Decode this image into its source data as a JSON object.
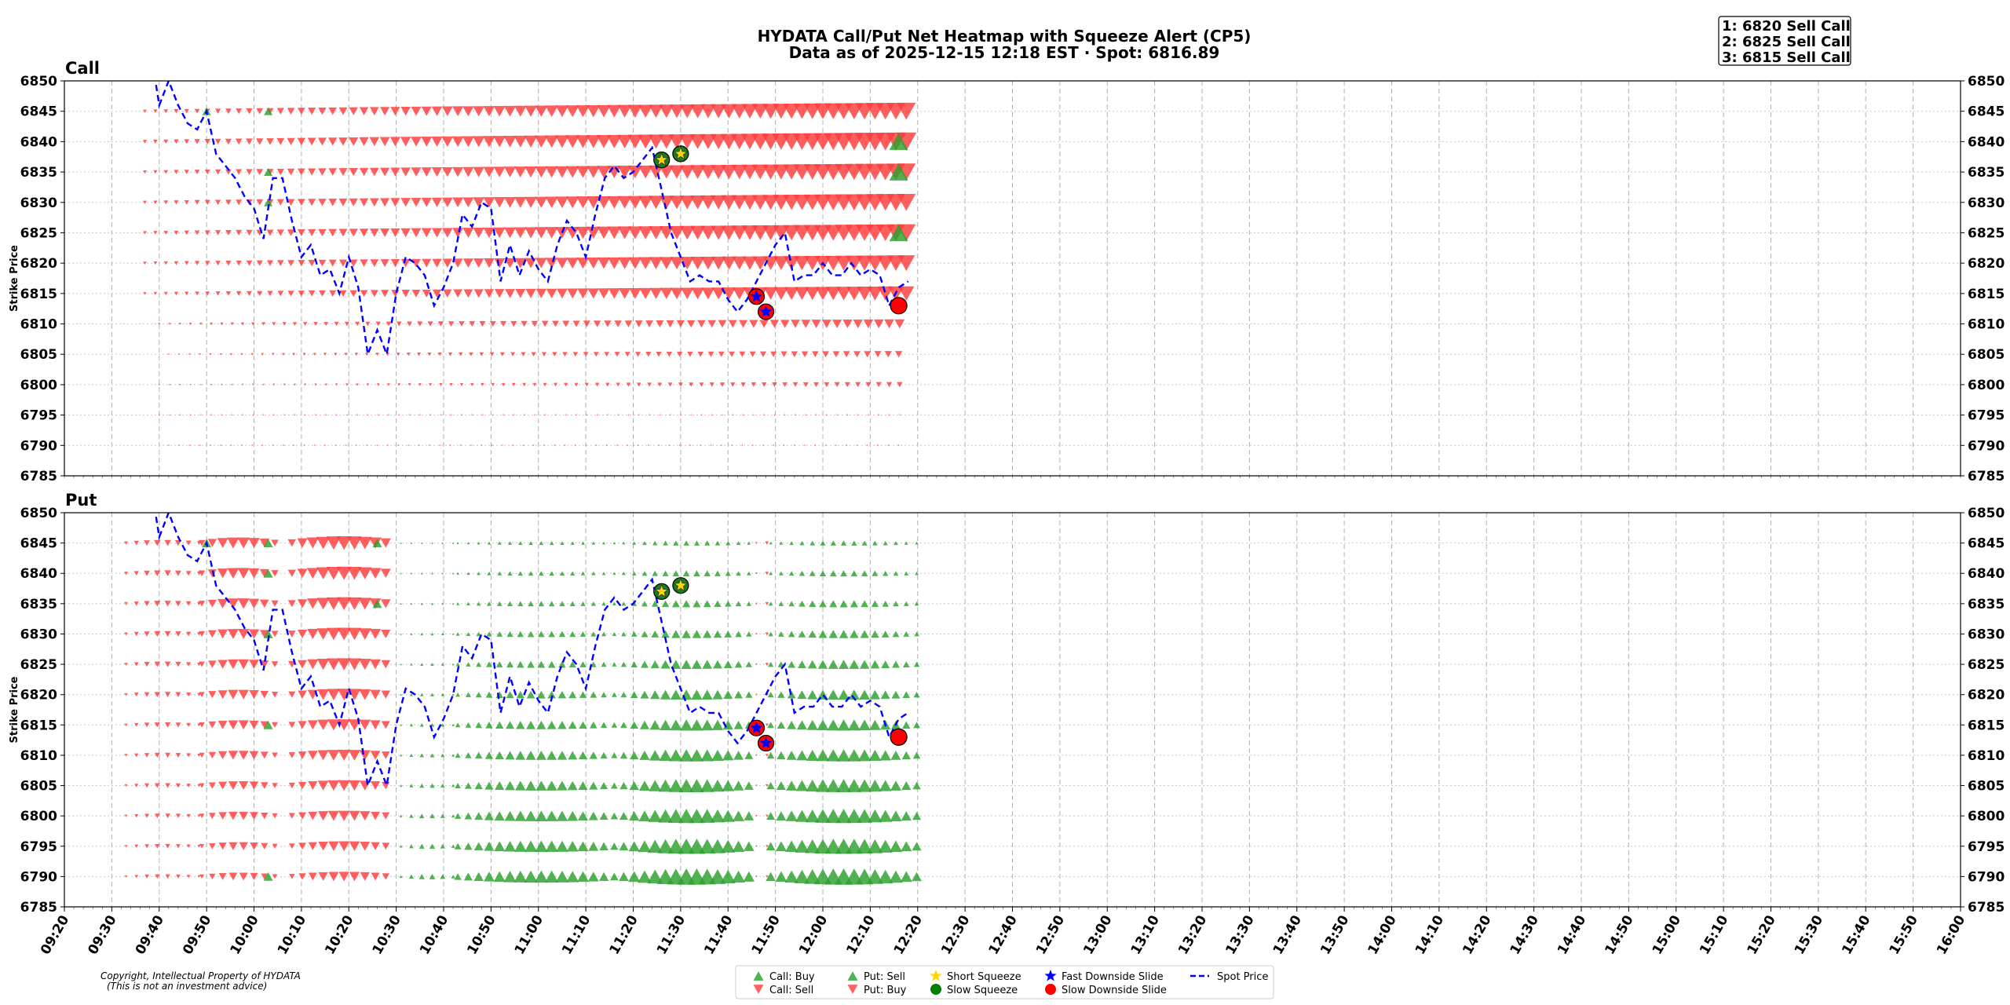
{
  "title_line1": "HYDATA Call/Put Net Heatmap with Squeeze Alert (CP5)",
  "title_line2": "Data as of 2025-12-15 12:18 EST · Spot: 6816.89",
  "alerts": [
    "1: 6820 Sell Call",
    "2: 6825 Sell Call",
    "3: 6815 Sell Call"
  ],
  "copyright_line1": "Copyright, Intellectual Property of HYDATA",
  "copyright_line2": "(This is not an investment advice)",
  "legend": [
    {
      "label": "Call: Buy",
      "marker": "triangle-up",
      "color": "#2ca02c"
    },
    {
      "label": "Call: Sell",
      "marker": "triangle-down",
      "color": "#ff4040"
    },
    {
      "label": "Put: Sell",
      "marker": "triangle-up",
      "color": "#2ca02c"
    },
    {
      "label": "Put: Buy",
      "marker": "triangle-down",
      "color": "#ff4040"
    },
    {
      "label": "Short Squeeze",
      "marker": "star",
      "color": "#ffd700"
    },
    {
      "label": "Slow Squeeze",
      "marker": "circle",
      "color": "#008000"
    },
    {
      "label": "Fast Downside Slide",
      "marker": "star",
      "color": "#0000ff"
    },
    {
      "label": "Slow Downside Slide",
      "marker": "circle",
      "color": "#ff0000"
    },
    {
      "label": "Spot Price",
      "marker": "dashed-line",
      "color": "#0000ff"
    }
  ],
  "colors": {
    "buy_green": "#2ca02c",
    "sell_red": "#ff3b3b",
    "spot_line": "#0000ff",
    "squeeze_star": "#ffd700",
    "slow_squeeze": "#1a7f1a",
    "fast_slide_star": "#0000ff",
    "slow_slide": "#ff0000"
  },
  "chart_data": [
    {
      "type": "scatter",
      "title": "Call",
      "ylabel": "Strike Price",
      "ylim": [
        6785,
        6850
      ],
      "yticks": [
        6785,
        6790,
        6795,
        6800,
        6805,
        6810,
        6815,
        6820,
        6825,
        6830,
        6835,
        6840,
        6845,
        6850
      ],
      "xlim": [
        "09:20",
        "16:00"
      ],
      "xticks": [
        "09:20",
        "09:30",
        "09:40",
        "09:50",
        "10:00",
        "10:10",
        "10:20",
        "10:30",
        "10:40",
        "10:50",
        "11:00",
        "11:10",
        "11:20",
        "11:30",
        "11:40",
        "11:50",
        "12:00",
        "12:10",
        "12:20",
        "12:30",
        "12:40",
        "12:50",
        "13:00",
        "13:10",
        "13:20",
        "13:30",
        "13:40",
        "13:50",
        "14:00",
        "14:10",
        "14:20",
        "14:30",
        "14:40",
        "14:50",
        "15:00",
        "15:10",
        "15:20",
        "15:30",
        "15:40",
        "15:50",
        "16:00"
      ],
      "grid": true,
      "net_flow": {
        "strikes": [
          6790,
          6795,
          6800,
          6805,
          6810,
          6815,
          6820,
          6825,
          6830,
          6835,
          6840,
          6845
        ],
        "start_minutes": [
          9,
          7,
          7,
          9,
          7,
          4,
          4,
          4,
          4,
          4,
          4,
          4
        ],
        "max_size": [
          1,
          1,
          4,
          5,
          7,
          11,
          12,
          13,
          13,
          13,
          14,
          13
        ],
        "sign": "sell"
      },
      "buy_markers": [
        {
          "time": "09:50",
          "strike": 6845
        },
        {
          "time": "10:03",
          "strike": 6845
        },
        {
          "time": "10:03",
          "strike": 6835
        },
        {
          "time": "10:03",
          "strike": 6830
        },
        {
          "time": "12:16",
          "strike": 6840
        },
        {
          "time": "12:16",
          "strike": 6835
        },
        {
          "time": "12:16",
          "strike": 6825
        }
      ],
      "events": [
        {
          "type": "Short Squeeze",
          "time": "11:26",
          "strike": 6837
        },
        {
          "type": "Short Squeeze",
          "time": "11:30",
          "strike": 6838
        },
        {
          "type": "Fast Downside Slide",
          "time": "11:46",
          "strike": 6814.5
        },
        {
          "type": "Fast Downside Slide",
          "time": "11:48",
          "strike": 6812
        },
        {
          "type": "Slow Downside Slide",
          "time": "12:16",
          "strike": 6813
        }
      ]
    },
    {
      "type": "scatter",
      "title": "Put",
      "ylabel": "Strike Price",
      "ylim": [
        6785,
        6850
      ],
      "yticks": [
        6785,
        6790,
        6795,
        6800,
        6805,
        6810,
        6815,
        6820,
        6825,
        6830,
        6835,
        6840,
        6845,
        6850
      ],
      "xlim": [
        "09:20",
        "16:00"
      ],
      "xticks": [
        "09:20",
        "09:30",
        "09:40",
        "09:50",
        "10:00",
        "10:10",
        "10:20",
        "10:30",
        "10:40",
        "10:50",
        "11:00",
        "11:10",
        "11:20",
        "11:30",
        "11:40",
        "11:50",
        "12:00",
        "12:10",
        "12:20",
        "12:30",
        "12:40",
        "12:50",
        "13:00",
        "13:10",
        "13:20",
        "13:30",
        "13:40",
        "13:50",
        "14:00",
        "14:10",
        "14:20",
        "14:30",
        "14:40",
        "14:50",
        "15:00",
        "15:10",
        "15:20",
        "15:30",
        "15:40",
        "15:50",
        "16:00"
      ],
      "grid": true,
      "net_flow": {
        "strikes": [
          6790,
          6795,
          6800,
          6805,
          6810,
          6815,
          6820,
          6825,
          6830,
          6835,
          6840,
          6845
        ],
        "segments": [
          {
            "from": "09:33",
            "to": "09:49",
            "sign": "buy",
            "max_size": 5
          },
          {
            "from": "09:49",
            "to": "10:05",
            "sign": "buy",
            "max_size": 9
          },
          {
            "from": "10:08",
            "to": "10:30",
            "sign": "buy",
            "max_size": 11
          },
          {
            "from": "10:31",
            "to": "10:43",
            "sign": "sell",
            "max_size": 4
          },
          {
            "from": "10:43",
            "to": "11:18",
            "sign": "sell",
            "max_size": 9
          },
          {
            "from": "11:18",
            "to": "11:46",
            "sign": "sell",
            "max_size": 12
          },
          {
            "from": "11:46",
            "to": "11:49",
            "sign": "buy",
            "max_size": 3
          },
          {
            "from": "11:49",
            "to": "12:20",
            "sign": "sell",
            "max_size": 12
          }
        ]
      },
      "events": [
        {
          "type": "Short Squeeze",
          "time": "11:26",
          "strike": 6837
        },
        {
          "type": "Short Squeeze",
          "time": "11:30",
          "strike": 6838
        },
        {
          "type": "Fast Downside Slide",
          "time": "11:46",
          "strike": 6814.5
        },
        {
          "type": "Fast Downside Slide",
          "time": "11:48",
          "strike": 6812
        },
        {
          "type": "Slow Downside Slide",
          "time": "12:16",
          "strike": 6813
        }
      ]
    }
  ],
  "spot_price_series": {
    "times": [
      "09:39",
      "09:40",
      "09:42",
      "09:44",
      "09:46",
      "09:48",
      "09:50",
      "09:52",
      "09:54",
      "09:56",
      "09:58",
      "10:00",
      "10:02",
      "10:04",
      "10:06",
      "10:08",
      "10:10",
      "10:12",
      "10:14",
      "10:16",
      "10:18",
      "10:20",
      "10:22",
      "10:24",
      "10:26",
      "10:28",
      "10:30",
      "10:32",
      "10:34",
      "10:36",
      "10:38",
      "10:40",
      "10:42",
      "10:44",
      "10:46",
      "10:48",
      "10:50",
      "10:52",
      "10:54",
      "10:56",
      "10:58",
      "11:00",
      "11:02",
      "11:04",
      "11:06",
      "11:08",
      "11:10",
      "11:12",
      "11:14",
      "11:16",
      "11:18",
      "11:20",
      "11:22",
      "11:24",
      "11:26",
      "11:28",
      "11:30",
      "11:32",
      "11:34",
      "11:36",
      "11:38",
      "11:40",
      "11:42",
      "11:44",
      "11:46",
      "11:48",
      "11:50",
      "11:52",
      "11:54",
      "11:56",
      "11:58",
      "12:00",
      "12:02",
      "12:04",
      "12:06",
      "12:08",
      "12:10",
      "12:12",
      "12:14",
      "12:16",
      "12:18"
    ],
    "values": [
      6851,
      6846,
      6850,
      6846,
      6843,
      6842,
      6845,
      6838,
      6836,
      6834,
      6831,
      6829,
      6824,
      6834,
      6834,
      6827,
      6821,
      6823,
      6818,
      6819,
      6815,
      6821,
      6816,
      6805,
      6809,
      6805,
      6815,
      6821,
      6820,
      6818,
      6813,
      6816,
      6820,
      6828,
      6826,
      6830,
      6829,
      6817,
      6823,
      6818,
      6822,
      6819,
      6817,
      6823,
      6827,
      6825,
      6821,
      6828,
      6834,
      6836,
      6834,
      6835,
      6837,
      6839,
      6832,
      6825,
      6821,
      6817,
      6818,
      6817,
      6817,
      6814,
      6812,
      6814,
      6817,
      6820,
      6823,
      6825,
      6817,
      6818,
      6818,
      6820,
      6818,
      6818,
      6820,
      6818,
      6819,
      6818,
      6813,
      6816,
      6817
    ]
  }
}
